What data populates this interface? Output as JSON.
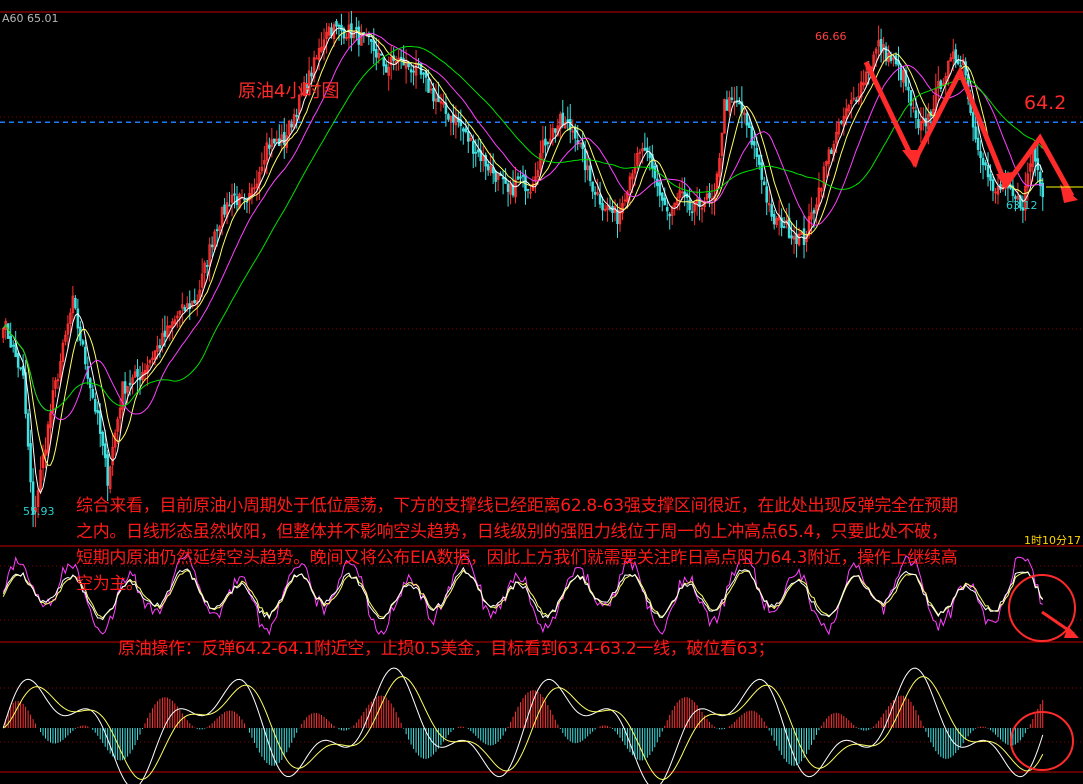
{
  "header": {
    "indicator": "A60 65.01"
  },
  "title": "原油4小时图",
  "labels": {
    "high": "66.66",
    "low_right": "63.12",
    "low_left": "55.93",
    "target": "64.2",
    "time": "1时10分17"
  },
  "commentary": {
    "paragraph": "综合来看，目前原油小周期处于低位震荡，下方的支撑线已经距离62.8-63强支撑区间很近，在此处出现反弹完全在预期之内。日线形态虽然收阳，但整体并不影响空头趋势，日线级别的强阻力线位于周一的上冲高点65.4，只要此处不破，短期内原油仍然延续空头趋势。晚间又将公布EIA数据，因此上方我们就需要关注昨日高点阻力64.3附近，操作上继续高空为主。",
    "operation": "原油操作：反弹64.2-64.1附近空，止损0.5美金，目标看到63.4-63.2一线，破位看63；"
  },
  "colors": {
    "up": "#ff3232",
    "down": "#40e0e0",
    "ma_white": "#ffffff",
    "ma_yellow": "#ffff66",
    "ma_magenta": "#ff40ff",
    "ma_green": "#00e000",
    "grid": "#8b0000",
    "dash": "#1e7bff",
    "annot": "#ff2a2a"
  },
  "chart_data": [
    {
      "type": "candlestick",
      "title": "原油4小时图",
      "ylim": [
        55.5,
        67.3
      ],
      "key_levels": [
        55.93,
        63.12,
        64.2,
        66.66
      ],
      "resistance_line": 64.9,
      "anchors": [
        [
          0,
          60.5
        ],
        [
          8,
          59.2
        ],
        [
          12,
          56.1
        ],
        [
          20,
          58.8
        ],
        [
          28,
          60.9
        ],
        [
          33,
          59.6
        ],
        [
          38,
          58.3
        ],
        [
          42,
          57.0
        ],
        [
          48,
          59.0
        ],
        [
          55,
          59.3
        ],
        [
          62,
          59.9
        ],
        [
          70,
          60.6
        ],
        [
          78,
          61.0
        ],
        [
          85,
          62.5
        ],
        [
          92,
          63.3
        ],
        [
          98,
          63.0
        ],
        [
          106,
          64.4
        ],
        [
          113,
          64.5
        ],
        [
          120,
          65.5
        ],
        [
          126,
          66.3
        ],
        [
          130,
          67.0
        ],
        [
          140,
          66.9
        ],
        [
          148,
          66.6
        ],
        [
          154,
          66.1
        ],
        [
          158,
          66.3
        ],
        [
          162,
          66.2
        ],
        [
          167,
          66.0
        ],
        [
          173,
          65.5
        ],
        [
          178,
          65.1
        ],
        [
          182,
          65.0
        ],
        [
          186,
          64.6
        ],
        [
          194,
          64.0
        ],
        [
          200,
          63.6
        ],
        [
          203,
          63.3
        ],
        [
          207,
          63.6
        ],
        [
          212,
          63.5
        ],
        [
          218,
          64.5
        ],
        [
          224,
          64.9
        ],
        [
          230,
          64.7
        ],
        [
          236,
          63.6
        ],
        [
          241,
          63.1
        ],
        [
          247,
          62.8
        ],
        [
          253,
          63.9
        ],
        [
          258,
          64.3
        ],
        [
          262,
          63.6
        ],
        [
          268,
          62.8
        ],
        [
          272,
          63.3
        ],
        [
          277,
          62.9
        ],
        [
          282,
          63.2
        ],
        [
          286,
          63.1
        ],
        [
          290,
          65.3
        ],
        [
          296,
          65.3
        ],
        [
          304,
          64.0
        ],
        [
          309,
          62.7
        ],
        [
          313,
          62.7
        ],
        [
          318,
          62.4
        ],
        [
          322,
          62.3
        ],
        [
          326,
          63.0
        ],
        [
          332,
          64.2
        ],
        [
          338,
          65.0
        ],
        [
          342,
          65.4
        ],
        [
          348,
          66.1
        ],
        [
          352,
          66.6
        ],
        [
          357,
          66.3
        ],
        [
          362,
          65.9
        ],
        [
          368,
          64.7
        ],
        [
          372,
          65.0
        ],
        [
          377,
          65.8
        ],
        [
          382,
          66.3
        ],
        [
          386,
          66.3
        ],
        [
          390,
          64.8
        ],
        [
          394,
          64.1
        ],
        [
          398,
          63.3
        ],
        [
          402,
          63.5
        ],
        [
          406,
          63.2
        ],
        [
          410,
          63.1
        ],
        [
          414,
          64.3
        ],
        [
          418,
          63.4
        ]
      ],
      "ma_lines": [
        {
          "name": "",
          "color": "#ffffff",
          "period": 5
        },
        {
          "name": "",
          "color": "#ffff66",
          "period": 10
        },
        {
          "name": "",
          "color": "#ff40ff",
          "period": 20
        },
        {
          "name": "",
          "color": "#00e000",
          "period": 40
        }
      ]
    },
    {
      "type": "line",
      "title": "",
      "series": [
        {
          "name": "",
          "color": "#ffffff",
          "kind": "oscillator"
        },
        {
          "name": "",
          "color": "#ffff66",
          "kind": "oscillator-slow"
        },
        {
          "name": "",
          "color": "#ff40ff",
          "kind": "oscillator-fast"
        }
      ]
    },
    {
      "type": "bar",
      "title": "",
      "series": [
        {
          "name": "",
          "color": "#ff3232",
          "kind": "histogram-positive"
        },
        {
          "name": "",
          "color": "#40e0e0",
          "kind": "histogram-negative"
        },
        {
          "name": "",
          "color": "#ffffff",
          "kind": "dif"
        },
        {
          "name": "",
          "color": "#ffff66",
          "kind": "dea"
        }
      ]
    }
  ]
}
